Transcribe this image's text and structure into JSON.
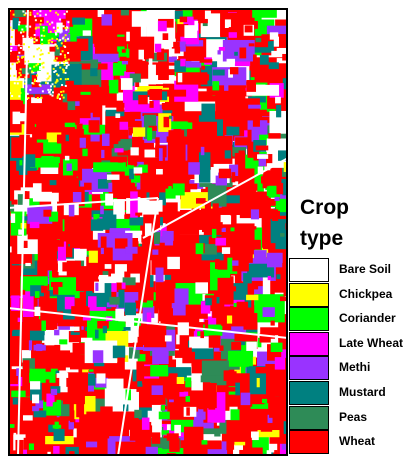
{
  "legend": {
    "title": "Crop type",
    "items": [
      {
        "name": "Bare Soil",
        "color": "#ffffff"
      },
      {
        "name": "Chickpea",
        "color": "#ffff00"
      },
      {
        "name": "Coriander",
        "color": "#00ff00"
      },
      {
        "name": "Late Wheat",
        "color": "#ff00ff"
      },
      {
        "name": "Methi",
        "color": "#9933ff"
      },
      {
        "name": "Mustard",
        "color": "#008080"
      },
      {
        "name": "Peas",
        "color": "#2e8b57"
      },
      {
        "name": "Wheat",
        "color": "#ff0000"
      }
    ]
  }
}
